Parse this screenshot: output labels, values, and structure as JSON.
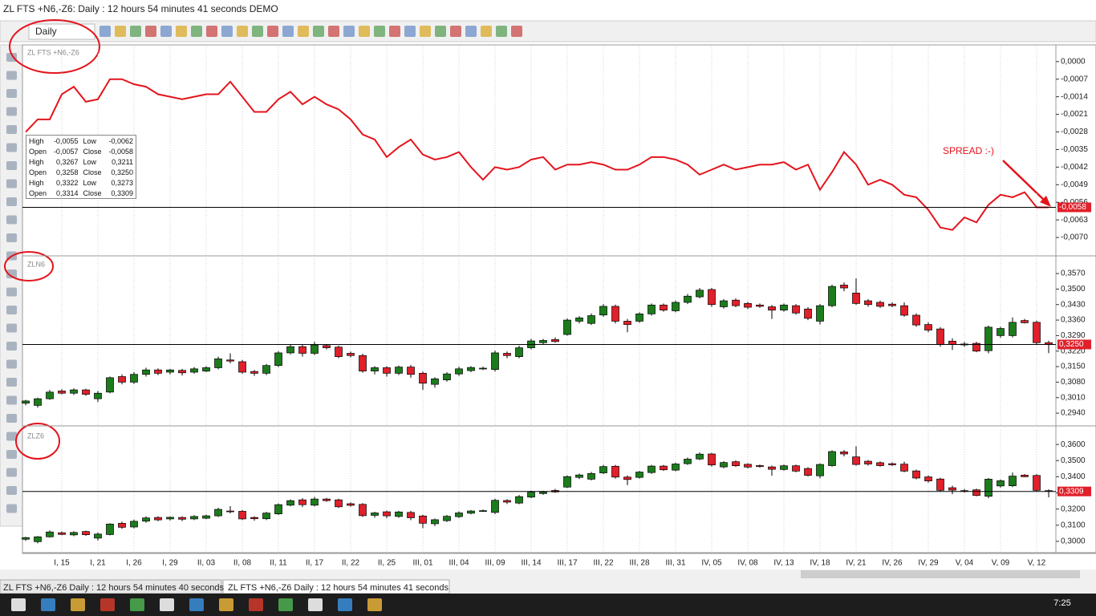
{
  "window": {
    "title": "ZL FTS +N6,-Z6: Daily : 12 hours 54 minutes 41 seconds DEMO"
  },
  "toolbar": {
    "timeframe": "Daily"
  },
  "info_box": {
    "rows": [
      [
        "High",
        "-0,0055",
        "Low",
        "-0,0062"
      ],
      [
        "Open",
        "-0,0057",
        "Close",
        "-0,0058"
      ],
      [
        "High",
        "0,3267",
        "Low",
        "0,3211"
      ],
      [
        "Open",
        "0,3258",
        "Close",
        "0,3250"
      ],
      [
        "High",
        "0,3322",
        "Low",
        "0,3273"
      ],
      [
        "Open",
        "0,3314",
        "Close",
        "0,3309"
      ]
    ]
  },
  "chart_data": [
    {
      "type": "line",
      "title": "ZL FTS +N6,-Z6",
      "color": "#e4141c",
      "annotation": "SPREAD :-)",
      "values": [
        -0.0028,
        -0.0023,
        -0.0023,
        -0.0013,
        -0.001,
        -0.0016,
        -0.0015,
        -0.0007,
        -0.0007,
        -0.0009,
        -0.001,
        -0.0013,
        -0.0014,
        -0.0015,
        -0.0014,
        -0.0013,
        -0.0013,
        -0.0008,
        -0.0014,
        -0.002,
        -0.002,
        -0.0015,
        -0.0012,
        -0.0017,
        -0.0014,
        -0.0017,
        -0.0019,
        -0.0023,
        -0.0029,
        -0.0031,
        -0.0038,
        -0.0034,
        -0.0031,
        -0.0037,
        -0.0039,
        -0.0038,
        -0.0036,
        -0.0042,
        -0.0047,
        -0.0042,
        -0.0043,
        -0.0042,
        -0.0039,
        -0.0038,
        -0.0043,
        -0.0041,
        -0.0041,
        -0.004,
        -0.0041,
        -0.0043,
        -0.0043,
        -0.0041,
        -0.0038,
        -0.0038,
        -0.0039,
        -0.0041,
        -0.0045,
        -0.0043,
        -0.0041,
        -0.0043,
        -0.0042,
        -0.0041,
        -0.0041,
        -0.004,
        -0.0043,
        -0.0041,
        -0.0051,
        -0.0044,
        -0.0036,
        -0.0041,
        -0.0049,
        -0.0047,
        -0.0049,
        -0.0053,
        -0.0054,
        -0.0059,
        -0.0066,
        -0.0067,
        -0.0062,
        -0.0064,
        -0.0057,
        -0.0053,
        -0.0054,
        -0.0052,
        -0.0058,
        -0.0058
      ],
      "ylim": [
        -0.0077,
        0.0006
      ],
      "yticks": [
        {
          "value": 0,
          "label": "0,0000"
        },
        {
          "value": -0.0007,
          "label": "-0,0007"
        },
        {
          "value": -0.0014,
          "label": "-0,0014"
        },
        {
          "value": -0.0021,
          "label": "-0,0021"
        },
        {
          "value": -0.0028,
          "label": "-0,0028"
        },
        {
          "value": -0.0035,
          "label": "-0,0035"
        },
        {
          "value": -0.0042,
          "label": "-0,0042"
        },
        {
          "value": -0.0049,
          "label": "-0,0049"
        },
        {
          "value": -0.0056,
          "label": "-0,0056"
        },
        {
          "value": -0.0063,
          "label": "-0,0063"
        },
        {
          "value": -0.007,
          "label": "-0,0070"
        }
      ],
      "last": {
        "value": -0.0058,
        "label": "-0,0058"
      },
      "grid": true
    },
    {
      "type": "candlestick",
      "title": "ZLN6",
      "up_color": "#1c7c1c",
      "down_color": "#e0202a",
      "open": [
        0.2985,
        0.2975,
        0.3005,
        0.304,
        0.303,
        0.3045,
        0.3005,
        0.3035,
        0.3105,
        0.308,
        0.3115,
        0.3135,
        0.3125,
        0.3133,
        0.3125,
        0.313,
        0.3145,
        0.318,
        0.3172,
        0.3128,
        0.312,
        0.3155,
        0.3212,
        0.324,
        0.321,
        0.3245,
        0.3238,
        0.321,
        0.32,
        0.313,
        0.3145,
        0.312,
        0.3148,
        0.312,
        0.307,
        0.309,
        0.3117,
        0.3132,
        0.314,
        0.3137,
        0.321,
        0.3195,
        0.3235,
        0.3258,
        0.3272,
        0.3295,
        0.3355,
        0.3345,
        0.3383,
        0.3422,
        0.3355,
        0.3355,
        0.3388,
        0.3428,
        0.3402,
        0.344,
        0.3465,
        0.3498,
        0.342,
        0.345,
        0.3435,
        0.3428,
        0.342,
        0.3405,
        0.3425,
        0.341,
        0.3355,
        0.3425,
        0.3518,
        0.3482,
        0.3447,
        0.344,
        0.3432,
        0.3425,
        0.3382,
        0.334,
        0.332,
        0.3265,
        0.3252,
        0.3255,
        0.3222,
        0.329,
        0.329,
        0.3358,
        0.335,
        0.3258
      ],
      "high": [
        0.3,
        0.301,
        0.3045,
        0.3048,
        0.3052,
        0.305,
        0.304,
        0.3105,
        0.3115,
        0.3125,
        0.3145,
        0.3142,
        0.314,
        0.314,
        0.3148,
        0.3152,
        0.3195,
        0.321,
        0.318,
        0.3135,
        0.3162,
        0.322,
        0.3248,
        0.325,
        0.3262,
        0.3252,
        0.3245,
        0.3218,
        0.3208,
        0.3152,
        0.3152,
        0.3155,
        0.3158,
        0.3128,
        0.3102,
        0.3125,
        0.315,
        0.3152,
        0.315,
        0.3222,
        0.3218,
        0.3245,
        0.3275,
        0.3275,
        0.3282,
        0.3368,
        0.3378,
        0.339,
        0.3432,
        0.343,
        0.3365,
        0.3395,
        0.3435,
        0.3435,
        0.3448,
        0.3478,
        0.3505,
        0.3505,
        0.3455,
        0.3458,
        0.3442,
        0.3435,
        0.3428,
        0.3435,
        0.3432,
        0.3418,
        0.3432,
        0.352,
        0.353,
        0.3548,
        0.3455,
        0.3448,
        0.344,
        0.344,
        0.339,
        0.335,
        0.3328,
        0.3278,
        0.3262,
        0.3262,
        0.3335,
        0.333,
        0.3372,
        0.3365,
        0.3358,
        0.3267
      ],
      "low": [
        0.2975,
        0.2965,
        0.3,
        0.3025,
        0.3022,
        0.3018,
        0.299,
        0.303,
        0.307,
        0.3072,
        0.3105,
        0.3112,
        0.3115,
        0.311,
        0.3118,
        0.3125,
        0.3138,
        0.3165,
        0.3118,
        0.3108,
        0.3112,
        0.3148,
        0.3205,
        0.3195,
        0.3202,
        0.3228,
        0.3188,
        0.3192,
        0.3122,
        0.3115,
        0.3105,
        0.3112,
        0.31,
        0.3045,
        0.3055,
        0.3082,
        0.3108,
        0.3125,
        0.3135,
        0.3128,
        0.3188,
        0.3188,
        0.3228,
        0.325,
        0.3258,
        0.329,
        0.3345,
        0.3338,
        0.3375,
        0.3345,
        0.3305,
        0.3348,
        0.338,
        0.3398,
        0.3395,
        0.3432,
        0.3458,
        0.342,
        0.3412,
        0.3418,
        0.341,
        0.3415,
        0.3365,
        0.3398,
        0.3385,
        0.336,
        0.334,
        0.3418,
        0.349,
        0.3428,
        0.342,
        0.3415,
        0.3418,
        0.3375,
        0.333,
        0.3305,
        0.324,
        0.3225,
        0.324,
        0.3215,
        0.321,
        0.328,
        0.3282,
        0.3345,
        0.325,
        0.3211
      ],
      "close": [
        0.2995,
        0.3005,
        0.3035,
        0.303,
        0.3045,
        0.3025,
        0.303,
        0.31,
        0.308,
        0.3115,
        0.3135,
        0.312,
        0.3135,
        0.3122,
        0.314,
        0.3145,
        0.3185,
        0.3175,
        0.3125,
        0.312,
        0.3155,
        0.3212,
        0.324,
        0.321,
        0.3248,
        0.3235,
        0.3195,
        0.32,
        0.313,
        0.3145,
        0.312,
        0.3148,
        0.3115,
        0.3075,
        0.3095,
        0.3117,
        0.314,
        0.3146,
        0.3143,
        0.3212,
        0.32,
        0.3235,
        0.3266,
        0.3268,
        0.3263,
        0.336,
        0.337,
        0.338,
        0.3422,
        0.3355,
        0.334,
        0.3388,
        0.3428,
        0.3405,
        0.344,
        0.3468,
        0.3495,
        0.343,
        0.3447,
        0.3425,
        0.3418,
        0.3422,
        0.3405,
        0.3428,
        0.3392,
        0.3368,
        0.3425,
        0.3512,
        0.3505,
        0.3435,
        0.343,
        0.3422,
        0.3425,
        0.3382,
        0.3338,
        0.3315,
        0.325,
        0.325,
        0.3248,
        0.322,
        0.3328,
        0.3322,
        0.335,
        0.3348,
        0.3258,
        0.325
      ],
      "ylim": [
        0.2886,
        0.3639
      ],
      "yticks": [
        {
          "value": 0.357,
          "label": "0,3570"
        },
        {
          "value": 0.35,
          "label": "0,3500"
        },
        {
          "value": 0.343,
          "label": "0,3430"
        },
        {
          "value": 0.336,
          "label": "0,3360"
        },
        {
          "value": 0.329,
          "label": "0,3290"
        },
        {
          "value": 0.322,
          "label": "0,3220"
        },
        {
          "value": 0.315,
          "label": "0,3150"
        },
        {
          "value": 0.308,
          "label": "0,3080"
        },
        {
          "value": 0.301,
          "label": "0,3010"
        },
        {
          "value": 0.294,
          "label": "0,2940"
        }
      ],
      "last": {
        "value": 0.325,
        "label": "0,3250"
      },
      "grid": true
    },
    {
      "type": "candlestick",
      "title": "ZLZ6",
      "up_color": "#1c7c1c",
      "down_color": "#e0202a",
      "categories": [
        null,
        null,
        null,
        "I, 15",
        null,
        null,
        "I, 21",
        null,
        null,
        "I, 26",
        null,
        null,
        "I, 29",
        null,
        null,
        "II, 03",
        null,
        null,
        "II, 08",
        null,
        null,
        "II, 11",
        null,
        null,
        "II, 17",
        null,
        null,
        "II, 22",
        null,
        null,
        "II, 25",
        null,
        null,
        "III, 01",
        null,
        null,
        "III, 04",
        null,
        null,
        "III, 09",
        null,
        null,
        "III, 14",
        null,
        null,
        "III, 17",
        null,
        null,
        "III, 22",
        null,
        null,
        "III, 28",
        null,
        null,
        "III, 31",
        null,
        null,
        "IV, 05",
        null,
        null,
        "IV, 08",
        null,
        null,
        "IV, 13",
        null,
        null,
        "IV, 18",
        null,
        null,
        "IV, 21",
        null,
        null,
        "IV, 26",
        null,
        null,
        "IV, 29",
        null,
        null,
        "V, 04",
        null,
        null,
        "V, 09",
        null,
        null,
        "V, 12",
        null
      ],
      "open": [
        0.3013,
        0.2998,
        0.3028,
        0.3053,
        0.304,
        0.3061,
        0.302,
        0.3042,
        0.3112,
        0.3089,
        0.3125,
        0.3148,
        0.3139,
        0.3148,
        0.3139,
        0.3143,
        0.3158,
        0.3188,
        0.3186,
        0.3148,
        0.314,
        0.317,
        0.3224,
        0.3257,
        0.3224,
        0.3262,
        0.3257,
        0.3233,
        0.3229,
        0.3161,
        0.3183,
        0.3154,
        0.3179,
        0.3157,
        0.3109,
        0.3128,
        0.3153,
        0.3174,
        0.3187,
        0.3179,
        0.3253,
        0.3237,
        0.3274,
        0.3296,
        0.3315,
        0.3336,
        0.3396,
        0.3385,
        0.3424,
        0.3465,
        0.3398,
        0.3396,
        0.3426,
        0.3466,
        0.3441,
        0.3481,
        0.351,
        0.3541,
        0.3461,
        0.3493,
        0.3477,
        0.3469,
        0.3461,
        0.3445,
        0.3468,
        0.3451,
        0.3406,
        0.3469,
        0.3554,
        0.3523,
        0.3496,
        0.3487,
        0.3481,
        0.3478,
        0.3436,
        0.3399,
        0.3386,
        0.3332,
        0.3314,
        0.3319,
        0.3279,
        0.3343,
        0.3344,
        0.341,
        0.3408,
        0.3314
      ],
      "high": [
        0.3028,
        0.3033,
        0.3068,
        0.3061,
        0.3062,
        0.3066,
        0.3055,
        0.3112,
        0.3122,
        0.3134,
        0.3155,
        0.3155,
        0.3154,
        0.3155,
        0.3162,
        0.3165,
        0.3208,
        0.3218,
        0.3194,
        0.3155,
        0.3182,
        0.3235,
        0.326,
        0.3267,
        0.3276,
        0.3269,
        0.3264,
        0.3241,
        0.3237,
        0.3183,
        0.319,
        0.3189,
        0.3189,
        0.3165,
        0.3141,
        0.3163,
        0.3186,
        0.3194,
        0.3197,
        0.3264,
        0.3261,
        0.3287,
        0.3314,
        0.3313,
        0.3325,
        0.3409,
        0.3419,
        0.343,
        0.3473,
        0.3473,
        0.3408,
        0.3436,
        0.3473,
        0.3473,
        0.3487,
        0.3519,
        0.355,
        0.3548,
        0.3496,
        0.3501,
        0.3484,
        0.3476,
        0.3469,
        0.3475,
        0.3475,
        0.3459,
        0.3483,
        0.3564,
        0.3566,
        0.3589,
        0.3504,
        0.3495,
        0.3489,
        0.3493,
        0.3444,
        0.3409,
        0.3394,
        0.3345,
        0.3324,
        0.3326,
        0.3392,
        0.3383,
        0.3426,
        0.3417,
        0.3416,
        0.3322
      ],
      "low": [
        0.3003,
        0.2988,
        0.3023,
        0.3038,
        0.3032,
        0.3034,
        0.3005,
        0.3037,
        0.3077,
        0.3081,
        0.3115,
        0.3125,
        0.3129,
        0.3125,
        0.3132,
        0.3138,
        0.3151,
        0.3173,
        0.3132,
        0.3128,
        0.3132,
        0.3163,
        0.3217,
        0.3212,
        0.3216,
        0.3245,
        0.3207,
        0.3215,
        0.3151,
        0.3146,
        0.3143,
        0.3146,
        0.3131,
        0.3082,
        0.3094,
        0.312,
        0.3144,
        0.3167,
        0.3182,
        0.317,
        0.3231,
        0.323,
        0.3267,
        0.3288,
        0.3301,
        0.3331,
        0.3386,
        0.3378,
        0.3416,
        0.3388,
        0.3348,
        0.3389,
        0.3418,
        0.3436,
        0.3434,
        0.3473,
        0.3503,
        0.3463,
        0.3453,
        0.3461,
        0.3452,
        0.3456,
        0.3406,
        0.3438,
        0.3428,
        0.3401,
        0.3391,
        0.3462,
        0.3526,
        0.3469,
        0.3469,
        0.3462,
        0.3467,
        0.3428,
        0.3384,
        0.3364,
        0.3306,
        0.3292,
        0.3302,
        0.3279,
        0.3267,
        0.3333,
        0.3336,
        0.3397,
        0.3308,
        0.3273
      ],
      "close": [
        0.3023,
        0.3028,
        0.3058,
        0.3043,
        0.3055,
        0.3041,
        0.3045,
        0.3107,
        0.3087,
        0.3124,
        0.3145,
        0.3133,
        0.3149,
        0.3137,
        0.3154,
        0.3158,
        0.3198,
        0.3183,
        0.3139,
        0.314,
        0.3175,
        0.3227,
        0.3252,
        0.3227,
        0.3262,
        0.3252,
        0.3214,
        0.3223,
        0.3159,
        0.3176,
        0.3158,
        0.3182,
        0.3146,
        0.3112,
        0.3134,
        0.3155,
        0.3176,
        0.3188,
        0.319,
        0.3254,
        0.3243,
        0.3277,
        0.3305,
        0.3306,
        0.3306,
        0.3401,
        0.3411,
        0.342,
        0.3463,
        0.3398,
        0.3383,
        0.3429,
        0.3466,
        0.3443,
        0.3479,
        0.3509,
        0.354,
        0.3473,
        0.3488,
        0.3468,
        0.346,
        0.3463,
        0.3446,
        0.3468,
        0.3435,
        0.3409,
        0.3476,
        0.3556,
        0.3541,
        0.3476,
        0.3479,
        0.3469,
        0.3474,
        0.3435,
        0.3392,
        0.3374,
        0.3316,
        0.3317,
        0.331,
        0.3284,
        0.3385,
        0.3375,
        0.3404,
        0.34,
        0.3316,
        0.3309
      ],
      "ylim": [
        0.2935,
        0.369
      ],
      "yticks": [
        {
          "value": 0.36,
          "label": "0,3600"
        },
        {
          "value": 0.35,
          "label": "0,3500"
        },
        {
          "value": 0.34,
          "label": "0,3400"
        },
        {
          "value": 0.33,
          "label": "0,3300"
        },
        {
          "value": 0.32,
          "label": "0,3200"
        },
        {
          "value": 0.31,
          "label": "0,3100"
        },
        {
          "value": 0.3,
          "label": "0,3000"
        }
      ],
      "last": {
        "value": 0.3309,
        "label": "0,3309"
      },
      "grid": true
    }
  ],
  "tabs": [
    "ZL FTS +N6,-Z6 Daily : 12 hours 54 minutes 40 seconds",
    "ZL FTS +N6,-Z6 Daily : 12 hours 54 minutes 41 seconds"
  ],
  "taskbar": {
    "clock": "7:25"
  }
}
